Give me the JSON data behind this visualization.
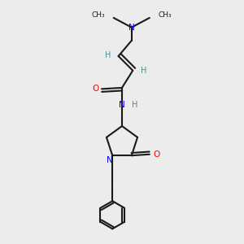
{
  "background_color": "#ececec",
  "bond_color": "#1a1a1a",
  "nitrogen_color": "#0000ff",
  "oxygen_color": "#ff0000",
  "hydrogen_color": "#4a9090",
  "figsize": [
    3.0,
    3.0
  ],
  "dpi": 100,
  "xlim": [
    0,
    1
  ],
  "ylim": [
    0,
    1
  ]
}
